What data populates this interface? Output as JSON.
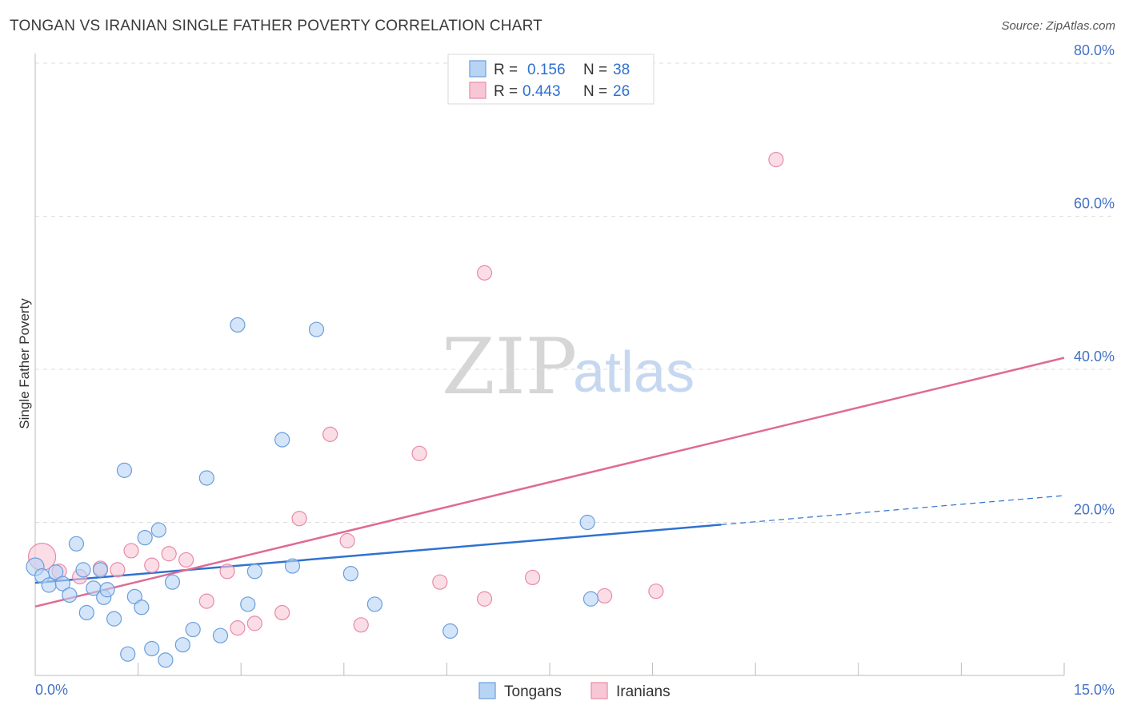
{
  "title": "TONGAN VS IRANIAN SINGLE FATHER POVERTY CORRELATION CHART",
  "source": "Source: ZipAtlas.com",
  "watermark": {
    "zip": "ZIP",
    "atlas": "atlas"
  },
  "colors": {
    "tongans_fill": "#b8d4f5",
    "tongans_stroke": "#6a9edb",
    "tongans_line": "#2f72d0",
    "iranians_fill": "#f8c7d6",
    "iranians_stroke": "#e88aa8",
    "iranians_line": "#e06a93",
    "grid": "#dddddd",
    "axis_text": "#4472c4"
  },
  "legend": {
    "r_label": "R =",
    "n_label": "N =",
    "rows": [
      {
        "series": "Tongans",
        "r": "0.156",
        "n": "38"
      },
      {
        "series": "Iranians",
        "r": "0.443",
        "n": "26"
      }
    ]
  },
  "chart_data": {
    "type": "scatter",
    "title": "TONGAN VS IRANIAN SINGLE FATHER POVERTY CORRELATION CHART",
    "xlabel": "",
    "ylabel": "Single Father Poverty",
    "xlim": [
      0,
      15
    ],
    "ylim": [
      0,
      80
    ],
    "x_tick_labels": [
      "0.0%",
      "15.0%"
    ],
    "y_ticks": [
      20,
      40,
      60,
      80
    ],
    "y_tick_labels": [
      "20.0%",
      "40.0%",
      "60.0%",
      "80.0%"
    ],
    "series": [
      {
        "name": "Tongans",
        "points": [
          [
            0.0,
            14.2
          ],
          [
            0.1,
            13.0
          ],
          [
            0.2,
            11.8
          ],
          [
            0.3,
            13.5
          ],
          [
            0.4,
            12.0
          ],
          [
            0.5,
            10.5
          ],
          [
            0.6,
            17.2
          ],
          [
            0.7,
            13.8
          ],
          [
            0.75,
            8.2
          ],
          [
            0.85,
            11.4
          ],
          [
            0.95,
            13.8
          ],
          [
            1.0,
            10.2
          ],
          [
            1.05,
            11.2
          ],
          [
            1.15,
            7.4
          ],
          [
            1.3,
            26.8
          ],
          [
            1.35,
            2.8
          ],
          [
            1.45,
            10.3
          ],
          [
            1.55,
            8.9
          ],
          [
            1.6,
            18.0
          ],
          [
            1.7,
            3.5
          ],
          [
            1.8,
            19.0
          ],
          [
            1.9,
            2.0
          ],
          [
            2.0,
            12.2
          ],
          [
            2.15,
            4.0
          ],
          [
            2.3,
            6.0
          ],
          [
            2.5,
            25.8
          ],
          [
            2.7,
            5.2
          ],
          [
            2.95,
            45.8
          ],
          [
            3.1,
            9.3
          ],
          [
            3.2,
            13.6
          ],
          [
            3.6,
            30.8
          ],
          [
            3.75,
            14.3
          ],
          [
            4.1,
            45.2
          ],
          [
            4.6,
            13.3
          ],
          [
            4.95,
            9.3
          ],
          [
            6.05,
            5.8
          ],
          [
            8.05,
            20.0
          ],
          [
            8.1,
            10.0
          ]
        ],
        "trend": {
          "x_start": 0,
          "y_start": 12.1,
          "x_solid_end": 10.0,
          "y_solid_end": 19.7,
          "x_end": 15,
          "y_end": 23.5
        }
      },
      {
        "name": "Iranians",
        "points": [
          [
            0.1,
            15.5
          ],
          [
            0.35,
            13.6
          ],
          [
            0.65,
            12.9
          ],
          [
            0.95,
            14.0
          ],
          [
            1.2,
            13.8
          ],
          [
            1.4,
            16.3
          ],
          [
            1.7,
            14.4
          ],
          [
            1.95,
            15.9
          ],
          [
            2.2,
            15.1
          ],
          [
            2.5,
            9.7
          ],
          [
            2.8,
            13.6
          ],
          [
            2.95,
            6.2
          ],
          [
            3.2,
            6.8
          ],
          [
            3.6,
            8.2
          ],
          [
            3.85,
            20.5
          ],
          [
            4.3,
            31.5
          ],
          [
            4.55,
            17.6
          ],
          [
            4.75,
            6.6
          ],
          [
            5.6,
            29.0
          ],
          [
            5.9,
            12.2
          ],
          [
            6.55,
            52.6
          ],
          [
            6.55,
            10.0
          ],
          [
            7.25,
            12.8
          ],
          [
            8.3,
            10.4
          ],
          [
            9.05,
            11.0
          ],
          [
            10.8,
            67.4
          ]
        ],
        "trend": {
          "x_start": 0,
          "y_start": 9.0,
          "x_end": 15,
          "y_end": 41.5
        }
      }
    ],
    "legend": [
      "Tongans",
      "Iranians"
    ],
    "grid": true
  }
}
